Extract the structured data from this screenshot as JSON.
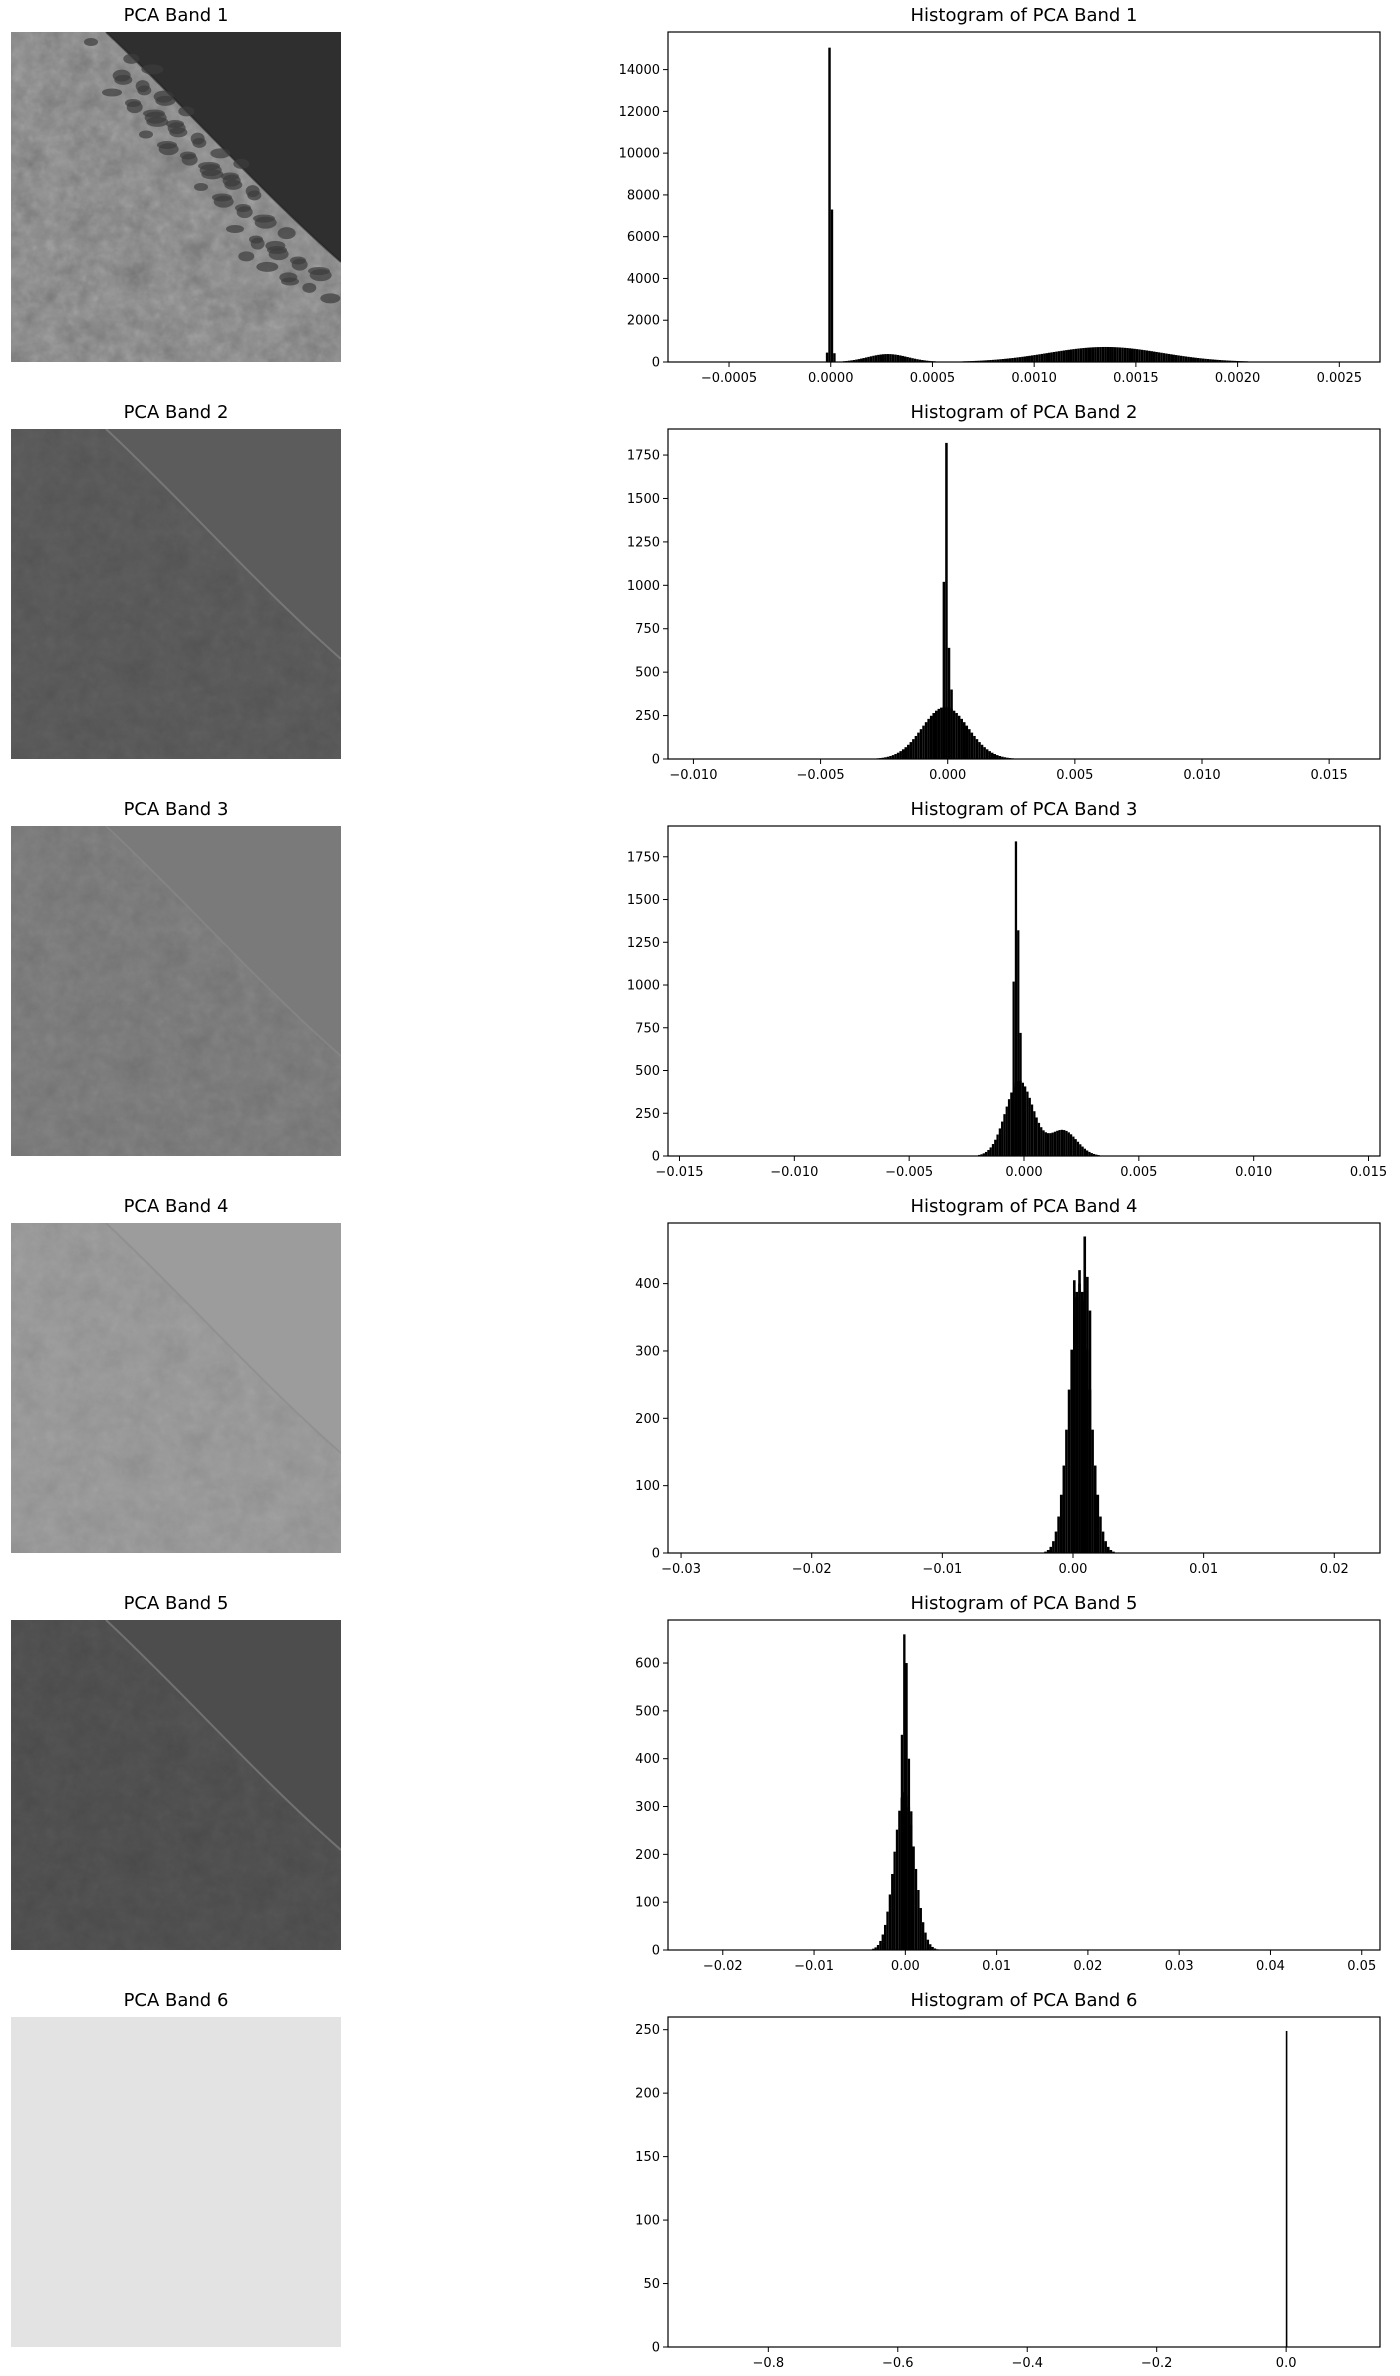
{
  "colors": {
    "bar": "#000000",
    "axis": "#000000",
    "background": "#ffffff"
  },
  "panels": [
    {
      "band_title": "PCA Band 1",
      "image_tone": "#8e8e8e",
      "image_kind": "landsat-coast-bright"
    },
    {
      "band_title": "PCA Band 2",
      "image_tone": "#595959",
      "image_kind": "landsat-coast-dark"
    },
    {
      "band_title": "PCA Band 3",
      "image_tone": "#7b7b7b",
      "image_kind": "landsat-coast-mid"
    },
    {
      "band_title": "PCA Band 4",
      "image_tone": "#9a9a9a",
      "image_kind": "landsat-coast-flat"
    },
    {
      "band_title": "PCA Band 5",
      "image_tone": "#4f4f4f",
      "image_kind": "landsat-coast-darkest"
    },
    {
      "band_title": "PCA Band 6",
      "image_tone": "#e3e3e3",
      "image_kind": "uniform"
    }
  ],
  "chart_data": [
    {
      "type": "bar",
      "title": "Histogram of PCA Band 1",
      "xlabel": "",
      "ylabel": "",
      "xlim": [
        -0.0008,
        0.0027
      ],
      "ylim": [
        0,
        15800
      ],
      "xticks": [
        -0.0005,
        0.0,
        0.0005,
        0.001,
        0.0015,
        0.002,
        0.0025
      ],
      "xtick_labels": [
        "−0.0005",
        "0.0000",
        "0.0005",
        "0.0010",
        "0.0015",
        "0.0020",
        "0.0025"
      ],
      "yticks": [
        0,
        2000,
        4000,
        6000,
        8000,
        10000,
        12000,
        14000
      ],
      "ytick_labels": [
        "0",
        "2000",
        "4000",
        "6000",
        "8000",
        "10000",
        "12000",
        "14000"
      ],
      "bin_width": 1.2e-05,
      "bins": [
        [
          -2.4e-05,
          450
        ],
        [
          -1.2e-05,
          15050
        ],
        [
          0.0,
          7300
        ],
        [
          1.2e-05,
          420
        ]
      ],
      "components": [
        {
          "center": 0.00028,
          "sigma": 0.0001,
          "peak": 380
        },
        {
          "center": 0.00135,
          "sigma": 0.00028,
          "peak": 720
        }
      ]
    },
    {
      "type": "bar",
      "title": "Histogram of PCA Band 2",
      "xlabel": "",
      "ylabel": "",
      "xlim": [
        -0.011,
        0.017
      ],
      "ylim": [
        0,
        1900
      ],
      "xticks": [
        -0.01,
        -0.005,
        0.0,
        0.005,
        0.01,
        0.015
      ],
      "xtick_labels": [
        "−0.010",
        "−0.005",
        "0.000",
        "0.005",
        "0.010",
        "0.015"
      ],
      "yticks": [
        0,
        250,
        500,
        750,
        1000,
        1250,
        1500,
        1750
      ],
      "ytick_labels": [
        "0",
        "250",
        "500",
        "750",
        "1000",
        "1250",
        "1500",
        "1750"
      ],
      "bin_width": 0.0001,
      "bins": [
        [
          -0.0002,
          1020
        ],
        [
          -0.0001,
          1820
        ],
        [
          0.0,
          640
        ],
        [
          0.0001,
          400
        ]
      ],
      "components": [
        {
          "center": -0.0001,
          "sigma": 0.0009,
          "peak": 300
        }
      ]
    },
    {
      "type": "bar",
      "title": "Histogram of PCA Band 3",
      "xlabel": "",
      "ylabel": "",
      "xlim": [
        -0.0155,
        0.0155
      ],
      "ylim": [
        0,
        1930
      ],
      "xticks": [
        -0.015,
        -0.01,
        -0.005,
        0.0,
        0.005,
        0.01,
        0.015
      ],
      "xtick_labels": [
        "−0.015",
        "−0.010",
        "−0.005",
        "0.000",
        "0.005",
        "0.010",
        "0.015"
      ],
      "yticks": [
        0,
        250,
        500,
        750,
        1000,
        1250,
        1500,
        1750
      ],
      "ytick_labels": [
        "0",
        "250",
        "500",
        "750",
        "1000",
        "1250",
        "1500",
        "1750"
      ],
      "bin_width": 0.0001,
      "bins": [
        [
          -0.0005,
          1020
        ],
        [
          -0.0004,
          1840
        ],
        [
          -0.0003,
          1320
        ],
        [
          -0.0002,
          720
        ]
      ],
      "components": [
        {
          "center": -0.0002,
          "sigma": 0.0006,
          "peak": 440
        },
        {
          "center": 0.0017,
          "sigma": 0.0006,
          "peak": 150
        }
      ]
    },
    {
      "type": "bar",
      "title": "Histogram of PCA Band 4",
      "xlabel": "",
      "ylabel": "",
      "xlim": [
        -0.031,
        0.0235
      ],
      "ylim": [
        0,
        490
      ],
      "xticks": [
        -0.03,
        -0.02,
        -0.01,
        0.0,
        0.01,
        0.02
      ],
      "xtick_labels": [
        "−0.03",
        "−0.02",
        "−0.01",
        "0.00",
        "0.01",
        "0.02"
      ],
      "yticks": [
        0,
        100,
        200,
        300,
        400
      ],
      "ytick_labels": [
        "0",
        "100",
        "200",
        "300",
        "400"
      ],
      "bin_width": 0.0002,
      "bins": [
        [
          0.0,
          405
        ],
        [
          0.0002,
          380
        ],
        [
          0.0004,
          420
        ],
        [
          0.0006,
          375
        ],
        [
          0.0008,
          470
        ],
        [
          0.001,
          410
        ],
        [
          0.0012,
          360
        ]
      ],
      "components": [
        {
          "center": 0.0005,
          "sigma": 0.0008,
          "peak": 400
        }
      ]
    },
    {
      "type": "bar",
      "title": "Histogram of PCA Band 5",
      "xlabel": "",
      "ylabel": "",
      "xlim": [
        -0.026,
        0.052
      ],
      "ylim": [
        0,
        690
      ],
      "xticks": [
        -0.02,
        -0.01,
        0.0,
        0.01,
        0.02,
        0.03,
        0.04,
        0.05
      ],
      "xtick_labels": [
        "−0.02",
        "−0.01",
        "0.00",
        "0.01",
        "0.02",
        "0.03",
        "0.04",
        "0.05"
      ],
      "yticks": [
        0,
        100,
        200,
        300,
        400,
        500,
        600
      ],
      "ytick_labels": [
        "0",
        "100",
        "200",
        "300",
        "400",
        "500",
        "600"
      ],
      "bin_width": 0.00026,
      "bins": [
        [
          -0.0005,
          450
        ],
        [
          -0.00024,
          660
        ],
        [
          0.0,
          600
        ],
        [
          0.00026,
          400
        ],
        [
          0.00052,
          290
        ]
      ],
      "components": [
        {
          "center": -0.0001,
          "sigma": 0.0011,
          "peak": 330
        }
      ]
    },
    {
      "type": "bar",
      "title": "Histogram of PCA Band 6",
      "xlabel": "",
      "ylabel": "",
      "xlim": [
        -0.955,
        0.145
      ],
      "ylim": [
        0,
        260
      ],
      "xticks": [
        -0.8,
        -0.6,
        -0.4,
        -0.2,
        0.0
      ],
      "xtick_labels": [
        "−0.8",
        "−0.6",
        "−0.4",
        "−0.2",
        "0.0"
      ],
      "yticks": [
        0,
        50,
        100,
        150,
        200,
        250
      ],
      "ytick_labels": [
        "0",
        "50",
        "100",
        "150",
        "200",
        "250"
      ],
      "bin_width": 0.0011,
      "bins": [
        [
          -0.00055,
          249
        ]
      ],
      "components": []
    }
  ]
}
